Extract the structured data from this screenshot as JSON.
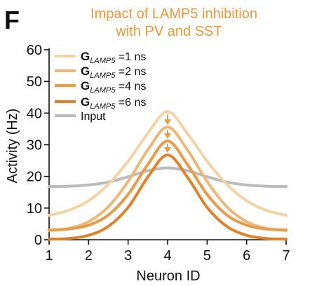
{
  "panel_label": "F",
  "chart_data": {
    "type": "line",
    "title_lines": [
      "Impact of LAMP5 inhibition",
      "with PV and SST"
    ],
    "xlabel": "Neuron ID",
    "ylabel": "Activity (Hz)",
    "xlim": [
      1,
      7
    ],
    "ylim": [
      0,
      60
    ],
    "x_ticks": [
      1,
      2,
      3,
      4,
      5,
      6,
      7
    ],
    "y_ticks": [
      0,
      10,
      20,
      30,
      40,
      50,
      60
    ],
    "grid": false,
    "legend_position": "top-left",
    "title_color": "#E8993A",
    "series": [
      {
        "legend_main": "G",
        "legend_sub": "LAMP5",
        "legend_value": "=1 ns",
        "color": "#F3D3A5",
        "x": [
          1,
          1.5,
          2,
          2.5,
          3,
          3.5,
          4,
          4.5,
          5,
          5.5,
          6,
          6.5,
          7
        ],
        "values": [
          7.7,
          9.3,
          12.3,
          17.5,
          24.8,
          33.6,
          40.5,
          33.6,
          24.8,
          17.5,
          12.3,
          9.3,
          7.7
        ]
      },
      {
        "legend_main": "G",
        "legend_sub": "LAMP5",
        "legend_value": "=2 ns",
        "color": "#EDB877",
        "x": [
          1,
          1.5,
          2,
          2.5,
          3,
          3.5,
          4,
          4.5,
          5,
          5.5,
          6,
          6.5,
          7
        ],
        "values": [
          2.9,
          3.6,
          5.7,
          10.4,
          18.4,
          28.4,
          35.6,
          28.4,
          18.4,
          10.4,
          5.7,
          3.6,
          2.9
        ]
      },
      {
        "legend_main": "G",
        "legend_sub": "LAMP5",
        "legend_value": "=4 ns",
        "color": "#E89B4A",
        "x": [
          1,
          1.5,
          2,
          2.5,
          3,
          3.5,
          4,
          4.5,
          5,
          5.5,
          6,
          6.5,
          7
        ],
        "values": [
          3.1,
          3.4,
          4.6,
          7.8,
          14.3,
          23.8,
          31.2,
          23.8,
          14.3,
          7.8,
          4.6,
          3.4,
          3.1
        ]
      },
      {
        "legend_main": "G",
        "legend_sub": "LAMP5",
        "legend_value": "=6 ns",
        "color": "#E1812A",
        "x": [
          1,
          1.5,
          2,
          2.5,
          3,
          3.5,
          4,
          4.5,
          5,
          5.5,
          6,
          6.5,
          7
        ],
        "values": [
          0.2,
          0.4,
          1.4,
          4.2,
          10.2,
          19.8,
          26.8,
          19.8,
          10.2,
          4.2,
          1.4,
          0.4,
          0.2
        ]
      },
      {
        "legend_main": "Input",
        "legend_sub": "",
        "legend_value": "",
        "color": "#BBBBBB",
        "x": [
          1,
          1.5,
          2,
          2.5,
          3,
          3.5,
          4,
          4.5,
          5,
          5.5,
          6,
          6.5,
          7
        ],
        "values": [
          16.8,
          16.9,
          17.3,
          18.2,
          19.9,
          21.8,
          22.7,
          21.8,
          19.9,
          18.2,
          17.3,
          16.9,
          16.8
        ]
      }
    ],
    "arrows": {
      "x": 4,
      "pairs": [
        [
          40.5,
          35.6
        ],
        [
          35.6,
          31.2
        ],
        [
          31.2,
          26.8
        ]
      ],
      "color": "#E89B4A"
    }
  }
}
